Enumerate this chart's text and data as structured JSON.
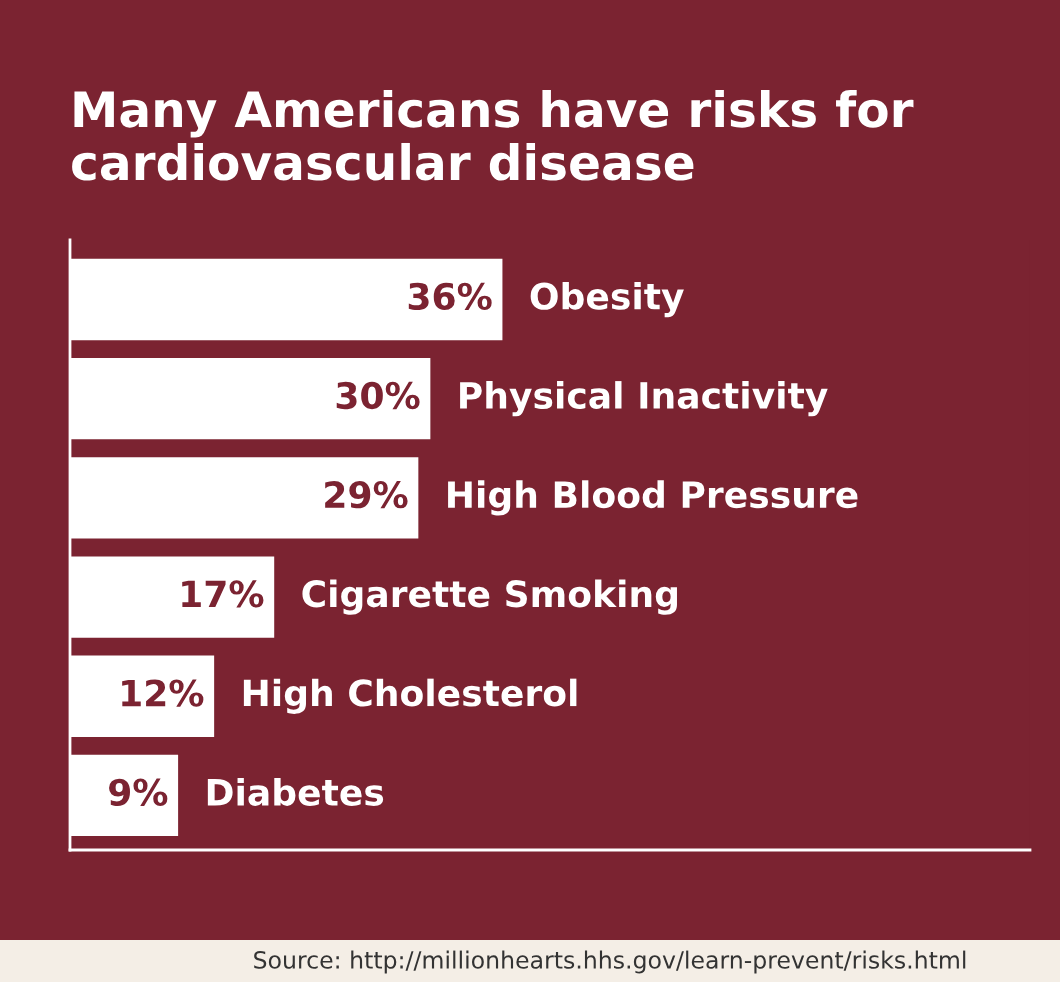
{
  "chart_data": {
    "type": "bar",
    "orientation": "horizontal",
    "title": "Many Americans have risks for\ncardiovascular disease",
    "categories": [
      "Obesity",
      "Physical Inactivity",
      "High Blood Pressure",
      "Cigarette Smoking",
      "High Cholesterol",
      "Diabetes"
    ],
    "values": [
      36,
      30,
      29,
      17,
      12,
      9
    ],
    "value_labels": [
      "36%",
      "30%",
      "29%",
      "17%",
      "12%",
      "9%"
    ],
    "color": "#ffffff",
    "legend": false,
    "tick_labels": false,
    "annotations": [
      "Source: http://millionhearts.hhs.gov/learn-prevent/risks.html"
    ]
  }
}
